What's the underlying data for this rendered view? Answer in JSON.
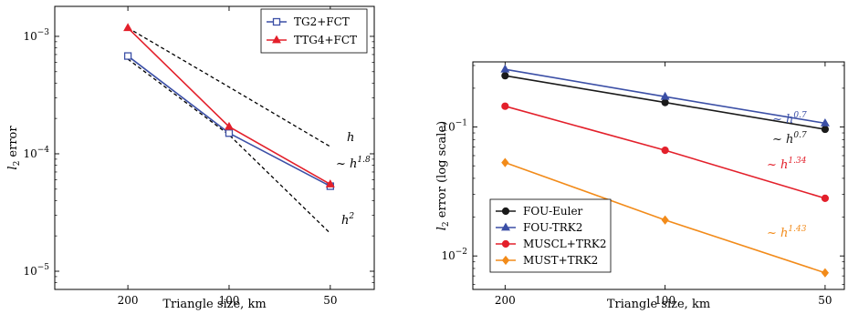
{
  "chart_data": [
    {
      "type": "line",
      "xscale": "log",
      "yscale": "log",
      "x_reversed": true,
      "x": [
        200,
        100,
        50
      ],
      "x_tick_labels": [
        "200",
        "100",
        "50"
      ],
      "xlabel": "Triangle size, km",
      "ylabel": "l2 error",
      "ylabel_parts": [
        "l",
        "2",
        " error"
      ],
      "ylim": [
        7e-06,
        0.0018
      ],
      "xlim": [
        330,
        37
      ],
      "y_ticks": [
        0.001,
        0.0001,
        1e-05
      ],
      "y_tick_parts": [
        [
          "10",
          "−3"
        ],
        [
          "10",
          "−4"
        ],
        [
          "10",
          "−5"
        ]
      ],
      "legend_position": "top-right",
      "series": [
        {
          "name": "TG2+FCT",
          "marker": "square-open",
          "color": "#3b4fa6",
          "values": [
            0.00068,
            0.00015,
            5.3e-05
          ]
        },
        {
          "name": "TTG4+FCT",
          "marker": "triangle",
          "color": "#e3202b",
          "values": [
            0.00118,
            0.00017,
            5.5e-05
          ]
        }
      ],
      "reference_lines": [
        {
          "values": [
            0.00118,
            0.00037,
            0.000115
          ],
          "style": "dashed"
        },
        {
          "values": [
            0.00064,
            0.000145,
            2.1e-05
          ],
          "style": "dashed"
        }
      ],
      "annotations": [
        {
          "base": "h",
          "exponent": ""
        },
        {
          "base": "~ h",
          "exponent": "1.8"
        },
        {
          "base": "h",
          "exponent": "2"
        }
      ]
    },
    {
      "type": "line",
      "xscale": "log",
      "yscale": "log",
      "x_reversed": true,
      "x": [
        200,
        100,
        50
      ],
      "x_tick_labels": [
        "200",
        "100",
        "50"
      ],
      "xlabel": "Triangle size, km",
      "ylabel": "l2 error (log scale)",
      "ylabel_parts": [
        "l",
        "2",
        " error (log scale)"
      ],
      "ylim": [
        0.0055,
        0.32
      ],
      "xlim": [
        230,
        46
      ],
      "y_ticks": [
        0.1,
        0.01
      ],
      "y_tick_parts": [
        [
          "10",
          "−1"
        ],
        [
          "10",
          "−2"
        ]
      ],
      "legend_position": "bottom-left",
      "series": [
        {
          "name": "FOU-Euler",
          "marker": "circle",
          "color": "#1a1a1a",
          "values": [
            0.25,
            0.155,
            0.096
          ]
        },
        {
          "name": "FOU-TRK2",
          "marker": "triangle",
          "color": "#3b4fa6",
          "values": [
            0.28,
            0.172,
            0.107
          ]
        },
        {
          "name": "MUSCL+TRK2",
          "marker": "circle",
          "color": "#e3202b",
          "values": [
            0.145,
            0.066,
            0.028
          ]
        },
        {
          "name": "MUST+TRK2",
          "marker": "diamond",
          "color": "#f28b1a",
          "values": [
            0.053,
            0.019,
            0.0074
          ]
        }
      ],
      "annotations": [
        {
          "base": "~ h",
          "exponent": "0.7",
          "color": "#3b4fa6"
        },
        {
          "base": "~ h",
          "exponent": "0.7",
          "color": "#1a1a1a"
        },
        {
          "base": "~ h",
          "exponent": "1.34",
          "color": "#e3202b"
        },
        {
          "base": "~ h",
          "exponent": "1.43",
          "color": "#f28b1a"
        }
      ]
    }
  ]
}
